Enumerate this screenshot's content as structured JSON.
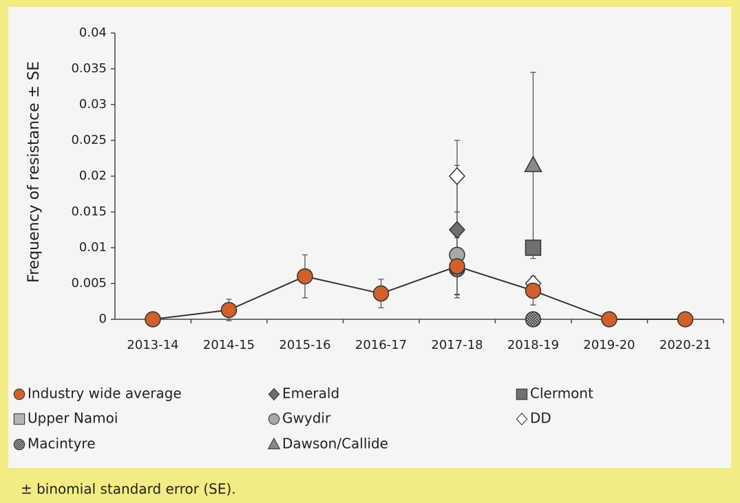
{
  "chart_data": {
    "type": "line",
    "ylabel": "Frequency of resistance ± SE",
    "footnote": "± binomial standard error (SE).",
    "categories": [
      "2013-14",
      "2014-15",
      "2015-16",
      "2016-17",
      "2017-18",
      "2018-19",
      "2019-20",
      "2020-21"
    ],
    "ylim": [
      0,
      0.04
    ],
    "yticks": [
      0,
      0.005,
      0.01,
      0.015,
      0.02,
      0.025,
      0.03,
      0.035,
      0.04
    ],
    "series": [
      {
        "name": "Industry wide average",
        "color": "#d0602c",
        "marker": "circle",
        "line": true,
        "values": [
          0,
          0.0013,
          0.006,
          0.0036,
          0.0074,
          0.004,
          0,
          0
        ],
        "errors": [
          null,
          0.0015,
          0.003,
          0.002,
          0.004,
          0.002,
          null,
          null
        ]
      },
      {
        "name": "Emerald",
        "color": "#6e6e6e",
        "marker": "diamond",
        "values": [
          null,
          null,
          null,
          null,
          0.0125,
          null,
          null,
          null
        ],
        "errors": [
          null,
          null,
          null,
          null,
          0.009,
          null,
          null,
          null
        ]
      },
      {
        "name": "Clermont",
        "color": "#707070",
        "marker": "square",
        "values": [
          null,
          null,
          null,
          null,
          null,
          0.01,
          null,
          null
        ],
        "errors": [
          null,
          null,
          null,
          null,
          null,
          null,
          null,
          null
        ]
      },
      {
        "name": "Upper Namoi",
        "color": "#b4b4b4",
        "marker": "square",
        "values": [
          null,
          null,
          null,
          null,
          null,
          null,
          null,
          null
        ],
        "errors": [
          null,
          null,
          null,
          null,
          null,
          null,
          null,
          null
        ]
      },
      {
        "name": "Gwydir",
        "color": "#a8a8a8",
        "marker": "circle",
        "values": [
          null,
          null,
          null,
          null,
          0.009,
          null,
          null,
          null
        ],
        "errors": [
          null,
          null,
          null,
          null,
          0.006,
          null,
          null,
          null
        ]
      },
      {
        "name": "DD",
        "color": "#ffffff",
        "marker": "diamond",
        "values": [
          null,
          null,
          null,
          null,
          0.02,
          0.005,
          null,
          null
        ],
        "errors": [
          null,
          null,
          null,
          null,
          0.005,
          null,
          null,
          null
        ]
      },
      {
        "name": "Macintyre",
        "color": "#777777",
        "marker": "hatched-circle",
        "values": [
          null,
          null,
          null,
          null,
          0.007,
          0,
          null,
          null
        ],
        "errors": [
          null,
          null,
          null,
          null,
          null,
          null,
          null,
          null
        ]
      },
      {
        "name": "Dawson/Callide",
        "color": "#8a8a8a",
        "marker": "triangle",
        "values": [
          null,
          null,
          null,
          null,
          null,
          0.0215,
          null,
          null
        ],
        "errors": [
          null,
          null,
          null,
          null,
          null,
          0.013,
          null,
          null
        ]
      }
    ]
  }
}
